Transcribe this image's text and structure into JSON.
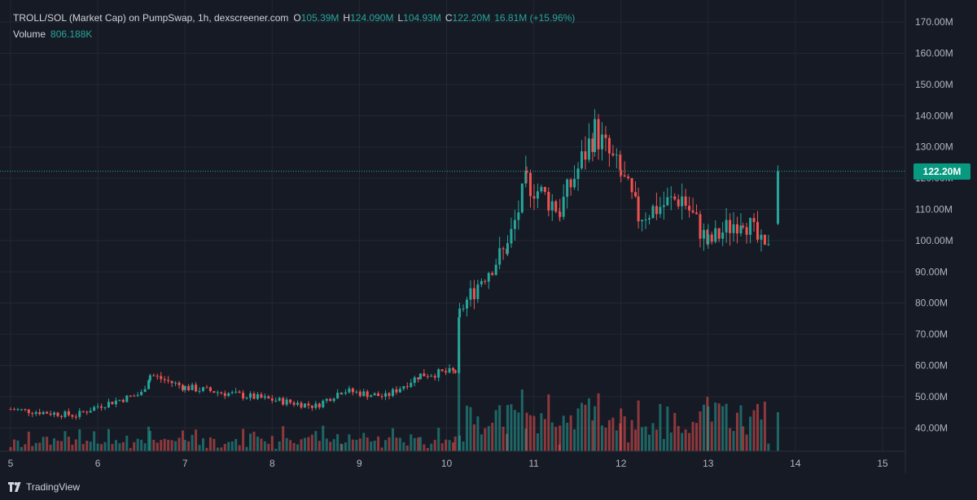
{
  "legend": {
    "symbol": "TROLL/SOL (Market Cap) on PumpSwap, 1h, dexscreener.com",
    "ohlc": [
      {
        "key": "O",
        "value": "105.39M"
      },
      {
        "key": "H",
        "value": "124.090M"
      },
      {
        "key": "L",
        "value": "104.93M"
      },
      {
        "key": "C",
        "value": "122.20M"
      }
    ],
    "change": "16.81M (+15.96%)",
    "volume_label": "Volume",
    "volume_value": "806.188K"
  },
  "last_price": "122.20M",
  "footer": {
    "brand": "TradingView"
  },
  "colors": {
    "up": "#26a69a",
    "down": "#ef5350",
    "bg": "#161a25",
    "grid": "#232733",
    "text": "#b2b5be"
  },
  "chart_data": {
    "type": "candlestick",
    "y_tick_labels": [
      "40.00M",
      "50.00M",
      "60.00M",
      "70.00M",
      "80.00M",
      "90.00M",
      "100.00M",
      "110.00M",
      "120.00M",
      "130.00M",
      "140.00M",
      "150.00M",
      "160.00M",
      "170.00M"
    ],
    "y_ticks": [
      40,
      50,
      60,
      70,
      80,
      90,
      100,
      110,
      120,
      130,
      140,
      150,
      160,
      170
    ],
    "x_tick_labels": [
      "5",
      "6",
      "7",
      "8",
      "9",
      "10",
      "11",
      "12",
      "13",
      "14",
      "15"
    ],
    "x_ticks": [
      5,
      6,
      7,
      8,
      9,
      10,
      11,
      12,
      13,
      14,
      15
    ],
    "unit": "M",
    "last_close": 122.2,
    "segments": [
      {
        "from": 5.0,
        "to": 5.75,
        "start": 46,
        "end": 44
      },
      {
        "from": 5.75,
        "to": 6.0,
        "start": 44,
        "end": 47
      },
      {
        "from": 6.0,
        "to": 6.5,
        "start": 47,
        "end": 51
      },
      {
        "from": 6.5,
        "to": 6.6,
        "start": 51,
        "end": 57
      },
      {
        "from": 6.6,
        "to": 7.0,
        "start": 57,
        "end": 53
      },
      {
        "from": 7.0,
        "to": 8.0,
        "start": 53,
        "end": 49
      },
      {
        "from": 8.0,
        "to": 8.5,
        "start": 49,
        "end": 47
      },
      {
        "from": 8.5,
        "to": 8.8,
        "start": 47,
        "end": 52
      },
      {
        "from": 8.8,
        "to": 9.3,
        "start": 52,
        "end": 50
      },
      {
        "from": 9.3,
        "to": 9.7,
        "start": 50,
        "end": 57
      },
      {
        "from": 9.7,
        "to": 10.1,
        "start": 57,
        "end": 58
      },
      {
        "from": 10.1,
        "to": 10.15,
        "start": 58,
        "end": 77
      },
      {
        "from": 10.15,
        "to": 10.4,
        "start": 77,
        "end": 88
      },
      {
        "from": 10.4,
        "to": 10.7,
        "start": 88,
        "end": 98
      },
      {
        "from": 10.7,
        "to": 10.92,
        "start": 98,
        "end": 119
      },
      {
        "from": 10.92,
        "to": 11.3,
        "start": 119,
        "end": 110
      },
      {
        "from": 11.3,
        "to": 11.7,
        "start": 110,
        "end": 135
      },
      {
        "from": 11.7,
        "to": 12.0,
        "start": 135,
        "end": 121
      },
      {
        "from": 12.0,
        "to": 12.2,
        "start": 121,
        "end": 108
      },
      {
        "from": 12.2,
        "to": 12.7,
        "start": 108,
        "end": 114
      },
      {
        "from": 12.7,
        "to": 13.0,
        "start": 114,
        "end": 99
      },
      {
        "from": 13.0,
        "to": 13.4,
        "start": 99,
        "end": 108
      },
      {
        "from": 13.4,
        "to": 13.65,
        "start": 108,
        "end": 96
      },
      {
        "from": 13.65,
        "to": 13.73,
        "start": 96,
        "end": 105.39
      }
    ],
    "final_candle": {
      "x": 13.8,
      "open": 105.39,
      "high": 124.09,
      "low": 104.93,
      "close": 122.2
    },
    "volume_series": "per-candle volume bars along the bottom, colored by candle direction"
  }
}
